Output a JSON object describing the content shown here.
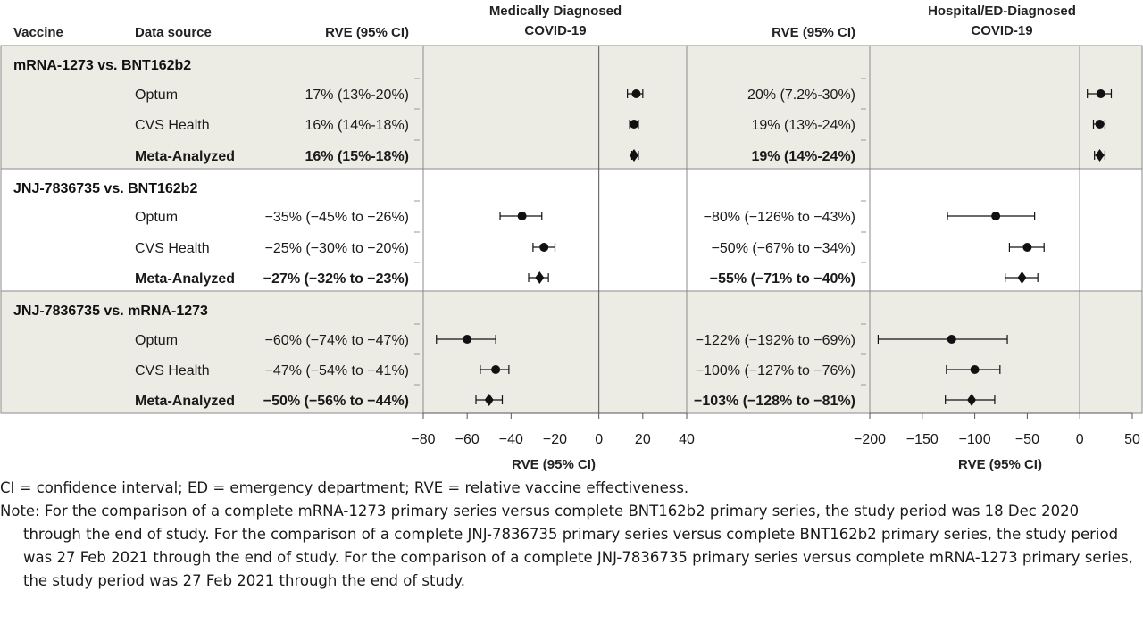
{
  "headers": {
    "vaccine": "Vaccine",
    "data_source": "Data source",
    "rve_left": "RVE (95% CI)",
    "panel_left_title": [
      "Medically Diagnosed",
      "COVID-19"
    ],
    "rve_right": "RVE (95% CI)",
    "panel_right_title": [
      "Hospital/ED-Diagnosed",
      "COVID-19"
    ]
  },
  "colors": {
    "shade": "#ecece4",
    "border": "#8a8a8a",
    "marker": "#111111"
  },
  "groups": [
    {
      "name": "mRNA-1273 vs. BNT162b2",
      "shaded": true,
      "rows": [
        {
          "source": "Optum",
          "bold": false,
          "marker": "circle",
          "left": {
            "text": "17% (13%-20%)",
            "est": 17,
            "lo": 13,
            "hi": 20
          },
          "right": {
            "text": "20% (7.2%-30%)",
            "est": 20,
            "lo": 7.2,
            "hi": 30
          }
        },
        {
          "source": "CVS Health",
          "bold": false,
          "marker": "circle",
          "left": {
            "text": "16% (14%-18%)",
            "est": 16,
            "lo": 14,
            "hi": 18
          },
          "right": {
            "text": "19% (13%-24%)",
            "est": 19,
            "lo": 13,
            "hi": 24
          }
        },
        {
          "source": "Meta-Analyzed",
          "bold": true,
          "marker": "diamond",
          "left": {
            "text": "16% (15%-18%)",
            "est": 16,
            "lo": 15,
            "hi": 18
          },
          "right": {
            "text": "19% (14%-24%)",
            "est": 19,
            "lo": 14,
            "hi": 24
          }
        }
      ]
    },
    {
      "name": "JNJ-7836735 vs. BNT162b2",
      "shaded": false,
      "rows": [
        {
          "source": "Optum",
          "bold": false,
          "marker": "circle",
          "left": {
            "text": "−35% (−45% to −26%)",
            "est": -35,
            "lo": -45,
            "hi": -26
          },
          "right": {
            "text": "−80% (−126% to −43%)",
            "est": -80,
            "lo": -126,
            "hi": -43
          }
        },
        {
          "source": "CVS Health",
          "bold": false,
          "marker": "circle",
          "left": {
            "text": "−25% (−30% to −20%)",
            "est": -25,
            "lo": -30,
            "hi": -20
          },
          "right": {
            "text": "−50% (−67% to −34%)",
            "est": -50,
            "lo": -67,
            "hi": -34
          }
        },
        {
          "source": "Meta-Analyzed",
          "bold": true,
          "marker": "diamond",
          "left": {
            "text": "−27% (−32% to −23%)",
            "est": -27,
            "lo": -32,
            "hi": -23
          },
          "right": {
            "text": "−55% (−71% to −40%)",
            "est": -55,
            "lo": -71,
            "hi": -40
          }
        }
      ]
    },
    {
      "name": "JNJ-7836735 vs. mRNA-1273",
      "shaded": true,
      "rows": [
        {
          "source": "Optum",
          "bold": false,
          "marker": "circle",
          "left": {
            "text": "−60% (−74% to −47%)",
            "est": -60,
            "lo": -74,
            "hi": -47
          },
          "right": {
            "text": "−122% (−192% to −69%)",
            "est": -122,
            "lo": -192,
            "hi": -69
          }
        },
        {
          "source": "CVS Health",
          "bold": false,
          "marker": "circle",
          "left": {
            "text": "−47% (−54% to −41%)",
            "est": -47,
            "lo": -54,
            "hi": -41
          },
          "right": {
            "text": "−100% (−127% to −76%)",
            "est": -100,
            "lo": -127,
            "hi": -76
          }
        },
        {
          "source": "Meta-Analyzed",
          "bold": true,
          "marker": "diamond",
          "left": {
            "text": "−50% (−56% to −44%)",
            "est": -50,
            "lo": -56,
            "hi": -44
          },
          "right": {
            "text": "−103% (−128% to −81%)",
            "est": -103,
            "lo": -128,
            "hi": -81
          }
        }
      ]
    }
  ],
  "axes": {
    "left": {
      "min": -80,
      "max": 40,
      "ticks": [
        -80,
        -60,
        -40,
        -20,
        0,
        20,
        40
      ],
      "tick_labels": [
        "−80",
        "−60",
        "−40",
        "−20",
        "0",
        "20",
        "40"
      ],
      "title": "RVE (95% CI)"
    },
    "right": {
      "min": -200,
      "max": 50,
      "ticks": [
        -200,
        -150,
        -100,
        -50,
        0,
        50
      ],
      "tick_labels": [
        "−200",
        "−150",
        "−100",
        "−50",
        "0",
        "50"
      ],
      "title": "RVE (95% CI)"
    }
  },
  "chart_data": [
    {
      "type": "forest",
      "title": "Medically Diagnosed COVID-19",
      "xlabel": "RVE (95% CI)",
      "xlim": [
        -80,
        40
      ],
      "reference_line": 0,
      "categories": [
        "mRNA-1273 vs. BNT162b2 / Optum",
        "mRNA-1273 vs. BNT162b2 / CVS Health",
        "mRNA-1273 vs. BNT162b2 / Meta-Analyzed",
        "JNJ-7836735 vs. BNT162b2 / Optum",
        "JNJ-7836735 vs. BNT162b2 / CVS Health",
        "JNJ-7836735 vs. BNT162b2 / Meta-Analyzed",
        "JNJ-7836735 vs. mRNA-1273 / Optum",
        "JNJ-7836735 vs. mRNA-1273 / CVS Health",
        "JNJ-7836735 vs. mRNA-1273 / Meta-Analyzed"
      ],
      "estimate": [
        17,
        16,
        16,
        -35,
        -25,
        -27,
        -60,
        -47,
        -50
      ],
      "lower": [
        13,
        14,
        15,
        -45,
        -30,
        -32,
        -74,
        -54,
        -56
      ],
      "upper": [
        20,
        18,
        18,
        -26,
        -20,
        -23,
        -47,
        -41,
        -44
      ]
    },
    {
      "type": "forest",
      "title": "Hospital/ED-Diagnosed COVID-19",
      "xlabel": "RVE (95% CI)",
      "xlim": [
        -200,
        50
      ],
      "reference_line": 0,
      "categories": [
        "mRNA-1273 vs. BNT162b2 / Optum",
        "mRNA-1273 vs. BNT162b2 / CVS Health",
        "mRNA-1273 vs. BNT162b2 / Meta-Analyzed",
        "JNJ-7836735 vs. BNT162b2 / Optum",
        "JNJ-7836735 vs. BNT162b2 / CVS Health",
        "JNJ-7836735 vs. BNT162b2 / Meta-Analyzed",
        "JNJ-7836735 vs. mRNA-1273 / Optum",
        "JNJ-7836735 vs. mRNA-1273 / CVS Health",
        "JNJ-7836735 vs. mRNA-1273 / Meta-Analyzed"
      ],
      "estimate": [
        20,
        19,
        19,
        -80,
        -50,
        -55,
        -122,
        -100,
        -103
      ],
      "lower": [
        7.2,
        13,
        14,
        -126,
        -67,
        -71,
        -192,
        -127,
        -128
      ],
      "upper": [
        30,
        24,
        24,
        -43,
        -34,
        -40,
        -69,
        -76,
        -81
      ]
    }
  ],
  "footnotes": {
    "abbrev": "CI = confidence interval; ED = emergency department; RVE = relative vaccine effectiveness.",
    "note": "Note: For the comparison of a complete mRNA-1273 primary series versus complete BNT162b2 primary series, the study period was 18 Dec 2020 through the end of study. For the comparison of a complete JNJ-7836735 primary series versus complete BNT162b2 primary series, the study period was 27 Feb 2021 through the end of study. For the comparison of a complete JNJ-7836735 primary series versus complete mRNA-1273 primary series, the study period was 27 Feb 2021 through the end of study."
  }
}
